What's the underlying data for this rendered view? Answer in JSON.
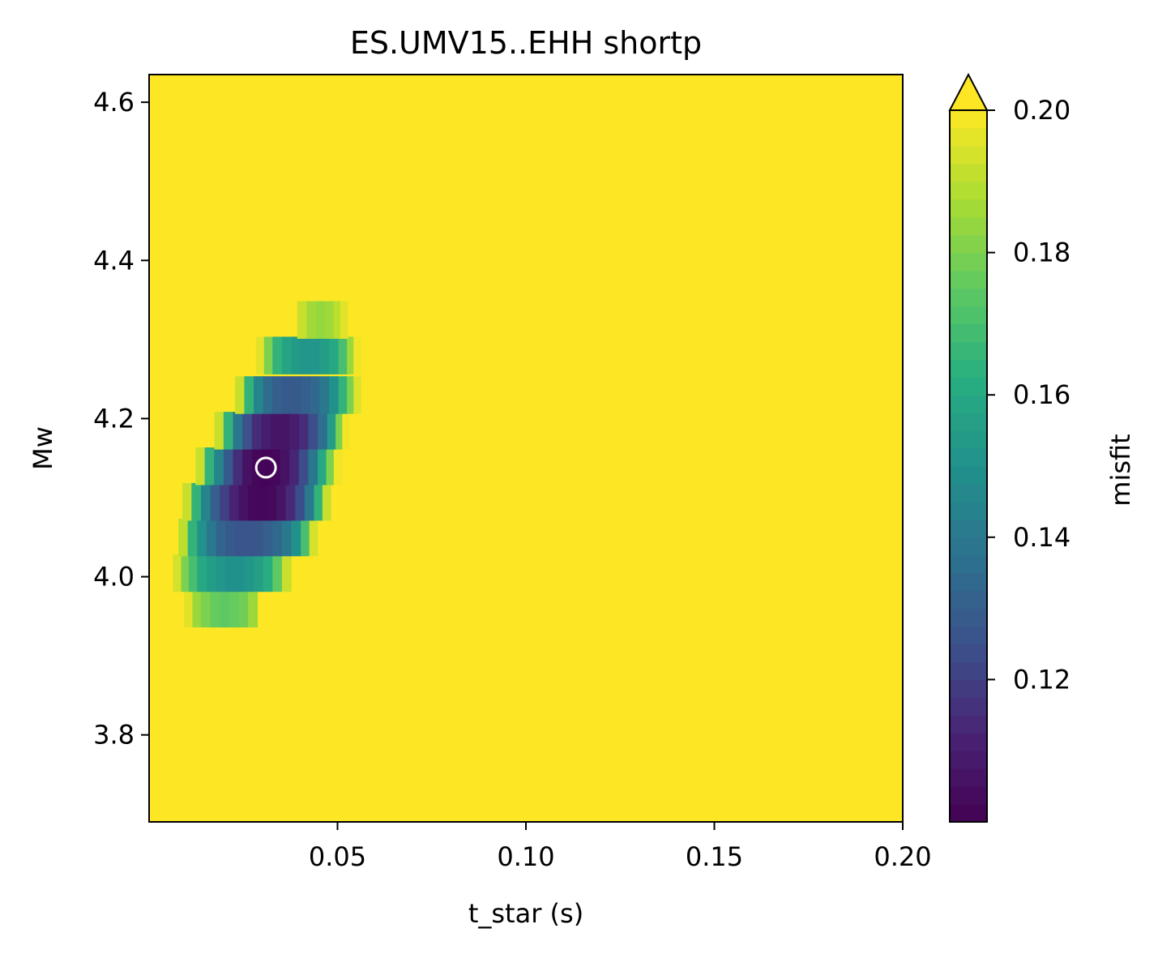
{
  "chart_data": {
    "type": "heatmap",
    "title": "ES.UMV15..EHH shortp",
    "xlabel": "t_star (s)",
    "ylabel": "Mw",
    "xlim": [
      0.0,
      0.2
    ],
    "ylim": [
      3.69,
      4.635
    ],
    "xticks": [
      0.05,
      0.1,
      0.15,
      0.2
    ],
    "xtick_labels": [
      "0.05",
      "0.10",
      "0.15",
      "0.20"
    ],
    "yticks": [
      3.8,
      4.0,
      4.2,
      4.4,
      4.6
    ],
    "ytick_labels": [
      "3.8",
      "4.0",
      "4.2",
      "4.4",
      "4.6"
    ],
    "colormap": "viridis",
    "color_range": [
      0.1,
      0.2
    ],
    "colorbar": {
      "label": "misfit",
      "extend": "max",
      "ticks": [
        0.12,
        0.14,
        0.16,
        0.18,
        0.2
      ],
      "tick_labels": [
        "0.12",
        "0.14",
        "0.16",
        "0.18",
        "0.20"
      ]
    },
    "background_value": 0.2,
    "cell_height": 0.047,
    "rows": [
      {
        "mw": 3.96,
        "cells": [
          [
            0.0105,
            0.196
          ],
          [
            0.0125,
            0.185
          ],
          [
            0.015,
            0.18
          ],
          [
            0.0175,
            0.176
          ],
          [
            0.02,
            0.175
          ],
          [
            0.0225,
            0.176
          ],
          [
            0.025,
            0.178
          ],
          [
            0.0275,
            0.185
          ]
        ]
      },
      {
        "mw": 4.005,
        "cells": [
          [
            0.0075,
            0.194
          ],
          [
            0.0095,
            0.18
          ],
          [
            0.0115,
            0.17
          ],
          [
            0.014,
            0.16
          ],
          [
            0.0165,
            0.155
          ],
          [
            0.019,
            0.152
          ],
          [
            0.0215,
            0.15
          ],
          [
            0.024,
            0.15
          ],
          [
            0.0265,
            0.152
          ],
          [
            0.029,
            0.156
          ],
          [
            0.0315,
            0.162
          ],
          [
            0.034,
            0.175
          ],
          [
            0.0365,
            0.192
          ]
        ]
      },
      {
        "mw": 4.05,
        "cells": [
          [
            0.009,
            0.19
          ],
          [
            0.0115,
            0.165
          ],
          [
            0.014,
            0.15
          ],
          [
            0.0165,
            0.14
          ],
          [
            0.019,
            0.132
          ],
          [
            0.0215,
            0.128
          ],
          [
            0.024,
            0.126
          ],
          [
            0.0265,
            0.126
          ],
          [
            0.029,
            0.127
          ],
          [
            0.0315,
            0.13
          ],
          [
            0.034,
            0.134
          ],
          [
            0.0365,
            0.14
          ],
          [
            0.039,
            0.15
          ],
          [
            0.0415,
            0.17
          ],
          [
            0.0435,
            0.194
          ]
        ]
      },
      {
        "mw": 4.095,
        "cells": [
          [
            0.01,
            0.192
          ],
          [
            0.0125,
            0.165
          ],
          [
            0.015,
            0.145
          ],
          [
            0.0175,
            0.13
          ],
          [
            0.02,
            0.12
          ],
          [
            0.0225,
            0.112
          ],
          [
            0.025,
            0.106
          ],
          [
            0.0275,
            0.103
          ],
          [
            0.03,
            0.102
          ],
          [
            0.0325,
            0.103
          ],
          [
            0.035,
            0.107
          ],
          [
            0.0375,
            0.114
          ],
          [
            0.04,
            0.124
          ],
          [
            0.0425,
            0.14
          ],
          [
            0.045,
            0.165
          ],
          [
            0.047,
            0.192
          ]
        ]
      },
      {
        "mw": 4.14,
        "cells": [
          [
            0.0135,
            0.192
          ],
          [
            0.016,
            0.165
          ],
          [
            0.0185,
            0.145
          ],
          [
            0.021,
            0.128
          ],
          [
            0.0235,
            0.115
          ],
          [
            0.026,
            0.106
          ],
          [
            0.0285,
            0.102
          ],
          [
            0.031,
            0.101
          ],
          [
            0.0335,
            0.102
          ],
          [
            0.036,
            0.106
          ],
          [
            0.0385,
            0.113
          ],
          [
            0.041,
            0.124
          ],
          [
            0.0435,
            0.14
          ],
          [
            0.046,
            0.16
          ],
          [
            0.048,
            0.18
          ],
          [
            0.05,
            0.198
          ]
        ]
      },
      {
        "mw": 4.185,
        "cells": [
          [
            0.0185,
            0.192
          ],
          [
            0.021,
            0.165
          ],
          [
            0.0235,
            0.14
          ],
          [
            0.026,
            0.125
          ],
          [
            0.0285,
            0.115
          ],
          [
            0.031,
            0.11
          ],
          [
            0.0335,
            0.107
          ],
          [
            0.036,
            0.107
          ],
          [
            0.0385,
            0.11
          ],
          [
            0.041,
            0.115
          ],
          [
            0.0435,
            0.124
          ],
          [
            0.046,
            0.136
          ],
          [
            0.0485,
            0.155
          ],
          [
            0.0505,
            0.18
          ],
          [
            0.052,
            0.198
          ]
        ]
      },
      {
        "mw": 4.23,
        "cells": [
          [
            0.024,
            0.192
          ],
          [
            0.0265,
            0.165
          ],
          [
            0.029,
            0.145
          ],
          [
            0.0315,
            0.135
          ],
          [
            0.034,
            0.13
          ],
          [
            0.0365,
            0.128
          ],
          [
            0.039,
            0.128
          ],
          [
            0.0415,
            0.13
          ],
          [
            0.044,
            0.134
          ],
          [
            0.0465,
            0.14
          ],
          [
            0.049,
            0.15
          ],
          [
            0.0515,
            0.165
          ],
          [
            0.0535,
            0.18
          ],
          [
            0.055,
            0.195
          ]
        ]
      },
      {
        "mw": 4.28,
        "cells": [
          [
            0.0295,
            0.196
          ],
          [
            0.0315,
            0.18
          ],
          [
            0.034,
            0.165
          ],
          [
            0.0365,
            0.158
          ],
          [
            0.039,
            0.154
          ],
          [
            0.0415,
            0.152
          ],
          [
            0.044,
            0.152
          ],
          [
            0.0465,
            0.155
          ],
          [
            0.049,
            0.16
          ],
          [
            0.0515,
            0.17
          ],
          [
            0.0535,
            0.185
          ],
          [
            0.055,
            0.198
          ]
        ]
      },
      {
        "mw": 4.325,
        "cells": [
          [
            0.0405,
            0.192
          ],
          [
            0.043,
            0.186
          ],
          [
            0.0455,
            0.184
          ],
          [
            0.048,
            0.186
          ],
          [
            0.05,
            0.19
          ],
          [
            0.0515,
            0.196
          ]
        ]
      }
    ],
    "best_fit": {
      "t_star": 0.031,
      "mw": 4.138
    }
  }
}
